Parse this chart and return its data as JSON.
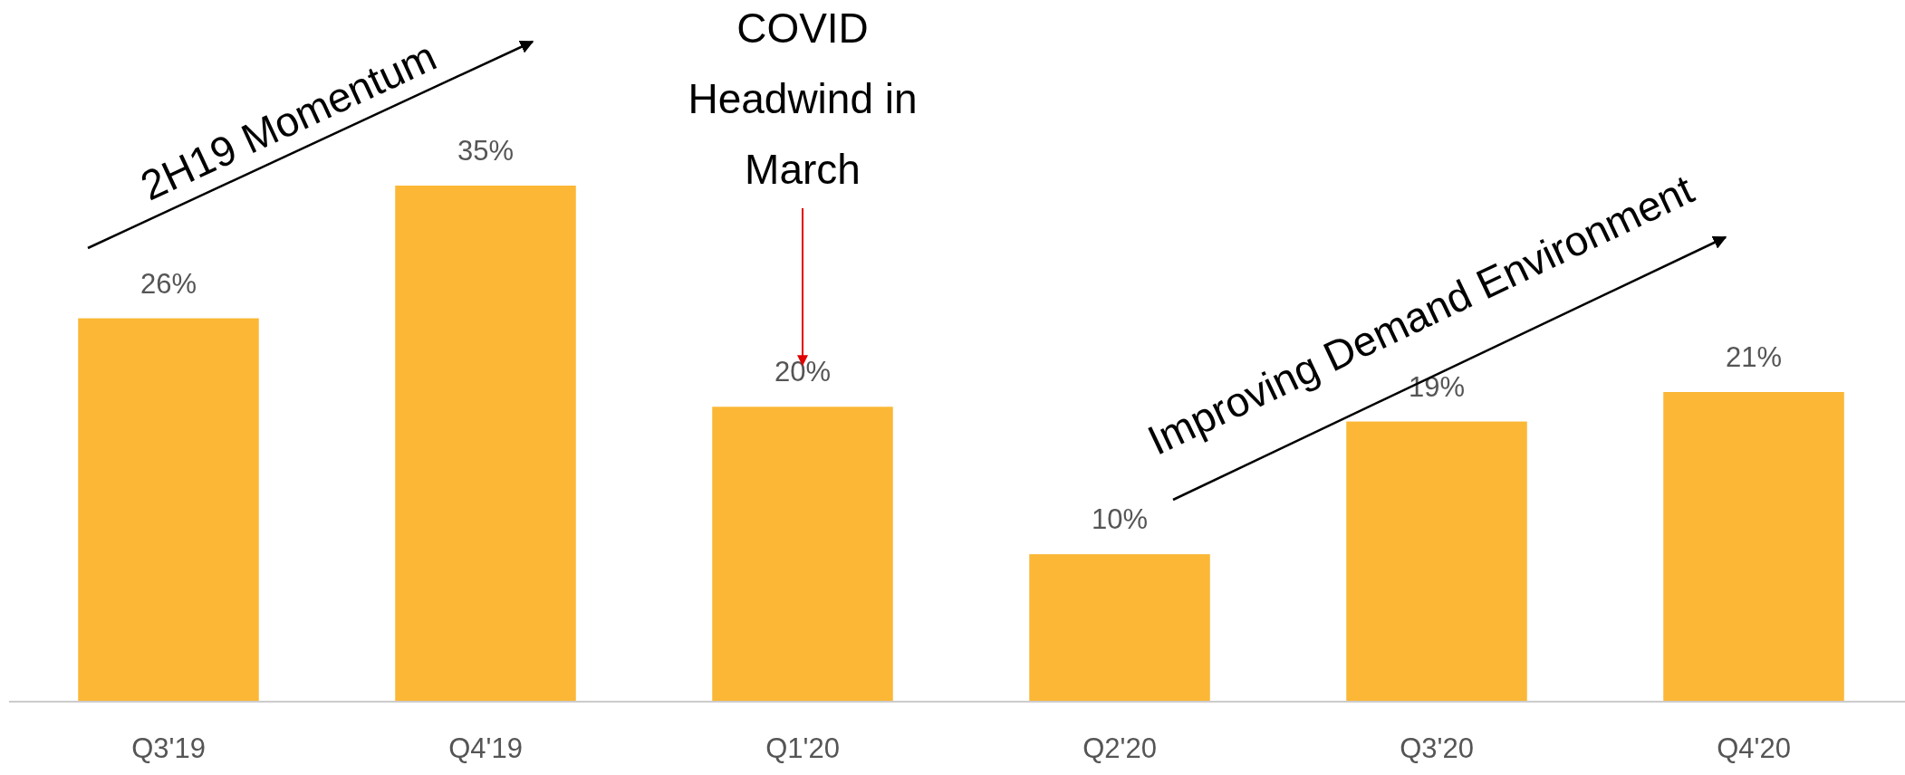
{
  "chart_data": {
    "type": "bar",
    "categories": [
      "Q3'19",
      "Q4'19",
      "Q1'20",
      "Q2'20",
      "Q3'20",
      "Q4'20"
    ],
    "values": [
      26,
      35,
      20,
      10,
      19,
      21
    ],
    "color": "#fbb735",
    "data_labels": true,
    "value_labels": [
      "26%",
      "35%",
      "20%",
      "10%",
      "19%",
      "21%"
    ],
    "annotations": [
      "2H19 Momentum",
      "COVID Headwind in March",
      "Improving Demand Environment"
    ]
  }
}
